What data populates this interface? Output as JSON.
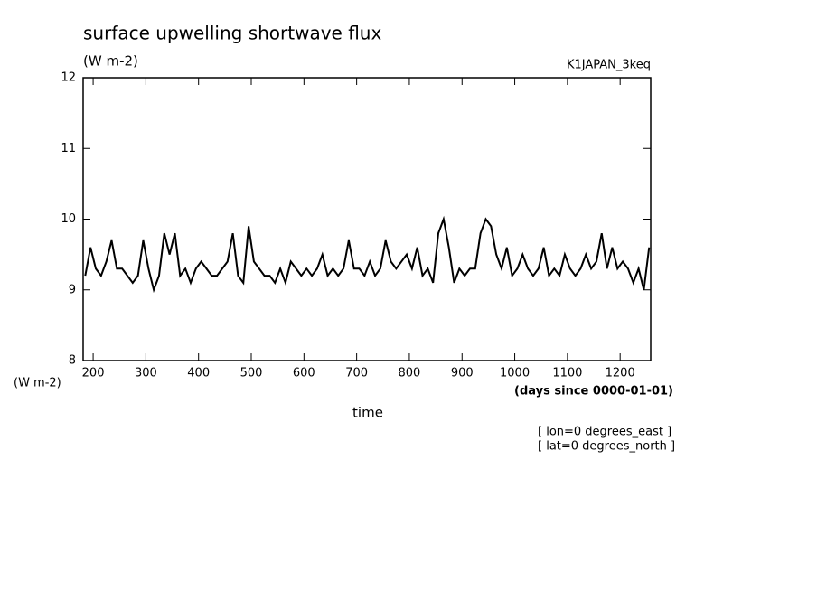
{
  "chart_data": {
    "type": "line",
    "title": "surface upwelling shortwave flux",
    "subtitle": "(W m-2)",
    "dataset": "K1JAPAN_3keq",
    "y_label": "(W m-2)",
    "x_units": "(days since 0000-01-01)",
    "x_label": "time",
    "annotations": [
      "[ lon=0 degrees_east ]",
      "[ lat=0 degrees_north ]"
    ],
    "xlim": [
      181,
      1258
    ],
    "xticks": [
      200,
      300,
      400,
      500,
      600,
      700,
      800,
      900,
      1000,
      1100,
      1200
    ],
    "ylim": [
      8,
      12
    ],
    "yticks": [
      8,
      9,
      10,
      11,
      12
    ],
    "color": "#000000",
    "x": [
      185,
      195,
      205,
      215,
      225,
      235,
      245,
      255,
      265,
      275,
      285,
      295,
      305,
      315,
      325,
      335,
      345,
      355,
      365,
      375,
      385,
      395,
      405,
      415,
      425,
      435,
      445,
      455,
      465,
      475,
      485,
      495,
      505,
      515,
      525,
      535,
      545,
      555,
      565,
      575,
      585,
      595,
      605,
      615,
      625,
      635,
      645,
      655,
      665,
      675,
      685,
      695,
      705,
      715,
      725,
      735,
      745,
      755,
      765,
      775,
      785,
      795,
      805,
      815,
      825,
      835,
      845,
      855,
      865,
      875,
      885,
      895,
      905,
      915,
      925,
      935,
      945,
      955,
      965,
      975,
      985,
      995,
      1005,
      1015,
      1025,
      1035,
      1045,
      1055,
      1065,
      1075,
      1085,
      1095,
      1105,
      1115,
      1125,
      1135,
      1145,
      1155,
      1165,
      1175,
      1185,
      1195,
      1205,
      1215,
      1225,
      1235,
      1245,
      1255
    ],
    "values": [
      9.2,
      9.6,
      9.3,
      9.2,
      9.4,
      9.7,
      9.3,
      9.3,
      9.2,
      9.1,
      9.2,
      9.7,
      9.3,
      9.0,
      9.2,
      9.8,
      9.5,
      9.8,
      9.2,
      9.3,
      9.1,
      9.3,
      9.4,
      9.3,
      9.2,
      9.2,
      9.3,
      9.4,
      9.8,
      9.2,
      9.1,
      9.9,
      9.4,
      9.3,
      9.2,
      9.2,
      9.1,
      9.3,
      9.1,
      9.4,
      9.3,
      9.2,
      9.3,
      9.2,
      9.3,
      9.5,
      9.2,
      9.3,
      9.2,
      9.3,
      9.7,
      9.3,
      9.3,
      9.2,
      9.4,
      9.2,
      9.3,
      9.7,
      9.4,
      9.3,
      9.4,
      9.5,
      9.3,
      9.6,
      9.2,
      9.3,
      9.1,
      9.8,
      10.0,
      9.6,
      9.1,
      9.3,
      9.2,
      9.3,
      9.3,
      9.8,
      10.0,
      9.9,
      9.5,
      9.3,
      9.6,
      9.2,
      9.3,
      9.5,
      9.3,
      9.2,
      9.3,
      9.6,
      9.2,
      9.3,
      9.2,
      9.5,
      9.3,
      9.2,
      9.3,
      9.5,
      9.3,
      9.4,
      9.8,
      9.3,
      9.6,
      9.3,
      9.4,
      9.3,
      9.1,
      9.3,
      9.0,
      9.6
    ]
  }
}
